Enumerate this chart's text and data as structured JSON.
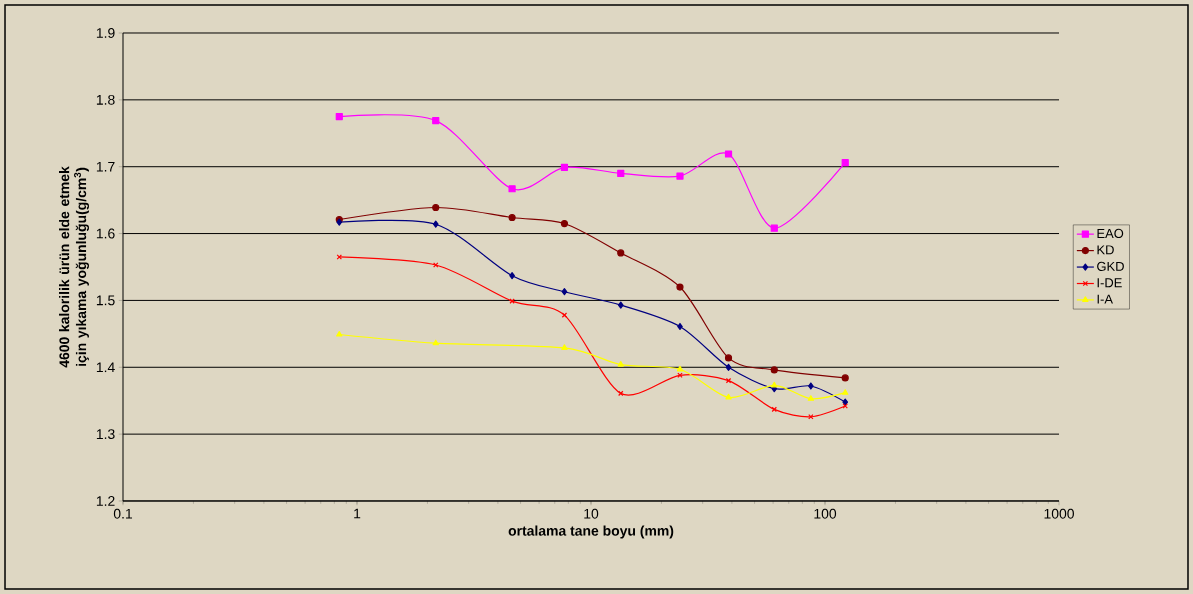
{
  "chart_data": {
    "type": "line",
    "xlabel": "ortalama tane boyu (mm)",
    "ylabel": "4600 kalorilik ürün elde etmek için yıkama yoğunluğu(g/cm$^{3}$)",
    "x": [
      0.84,
      2.17,
      4.6,
      7.7,
      13.4,
      24,
      38.7,
      60.7,
      87,
      122
    ],
    "series": [
      {
        "name": "EAO",
        "color": "#ff00ff",
        "marker": "square",
        "values": [
          1.775,
          1.769,
          1.667,
          1.699,
          1.69,
          1.686,
          1.719,
          1.608,
          null,
          1.706
        ]
      },
      {
        "name": "KD",
        "color": "#800000",
        "marker": "circle",
        "values": [
          1.621,
          1.639,
          1.624,
          1.615,
          1.571,
          1.52,
          1.414,
          1.396,
          null,
          1.384
        ]
      },
      {
        "name": "GKD",
        "color": "#000080",
        "marker": "diamond",
        "values": [
          1.617,
          1.614,
          1.537,
          1.513,
          1.493,
          1.461,
          1.4,
          1.368,
          1.372,
          1.348
        ]
      },
      {
        "name": "I-DE",
        "color": "#ff0000",
        "marker": "cross",
        "values": [
          1.565,
          1.553,
          1.499,
          1.478,
          1.361,
          1.388,
          1.38,
          1.337,
          1.326,
          1.342
        ]
      },
      {
        "name": "I-A",
        "color": "#ffff00",
        "marker": "triangle",
        "values": [
          1.449,
          1.436,
          null,
          1.429,
          1.404,
          1.397,
          1.355,
          1.373,
          1.353,
          1.362
        ]
      }
    ],
    "log": "x",
    "xlim": [
      0.1,
      1000
    ],
    "xticks": [
      0.1,
      1,
      10,
      100,
      1000
    ],
    "ylim": [
      1.2,
      1.9
    ],
    "yticks": [
      1.2,
      1.3,
      1.4,
      1.5,
      1.6,
      1.7,
      1.8,
      1.9
    ],
    "grid": "y",
    "legend": "right"
  }
}
